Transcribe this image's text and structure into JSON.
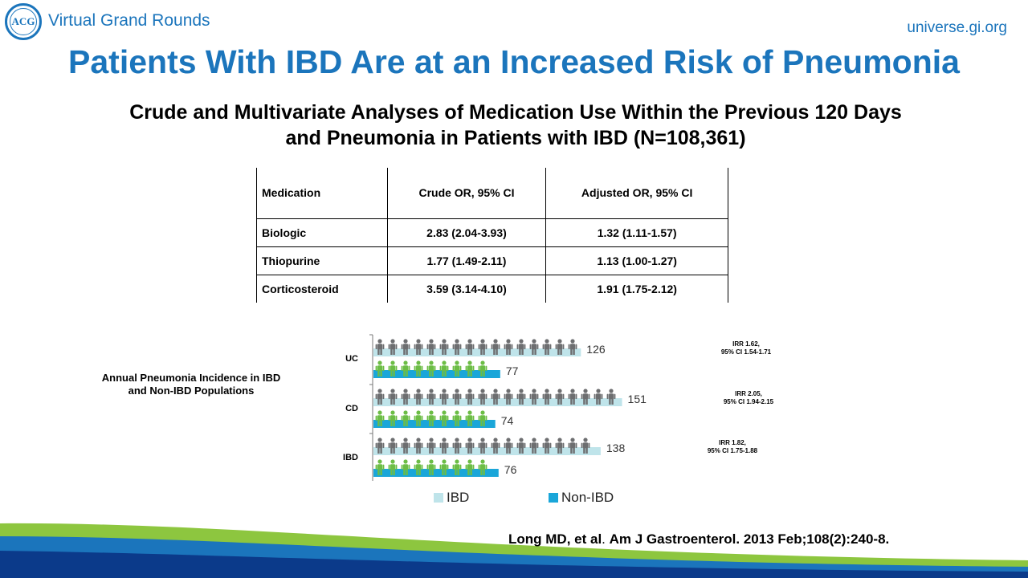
{
  "header": {
    "logo_text": "ACG",
    "program": "Virtual Grand Rounds",
    "site": "universe.gi.org"
  },
  "title": "Patients With IBD Are at an Increased Risk of Pneumonia",
  "subtitle": {
    "line1": "Crude and Multivariate Analyses of Medication Use Within the Previous 120 Days",
    "line2": "and Pneumonia in Patients with IBD (N=108,361)"
  },
  "table": {
    "headers": [
      "Medication",
      "Crude OR, 95% CI",
      "Adjusted OR, 95% CI"
    ],
    "rows": [
      [
        "Biologic",
        "2.83 (2.04-3.93)",
        "1.32 (1.11-1.57)"
      ],
      [
        "Thiopurine",
        "1.77 (1.49-2.11)",
        "1.13 (1.00-1.27)"
      ],
      [
        "Corticosteroid",
        "3.59 (3.14-4.10)",
        "1.91 (1.75-2.12)"
      ]
    ]
  },
  "chart_label": {
    "line1": "Annual Pneumonia Incidence in IBD",
    "line2": "and Non-IBD Populations"
  },
  "chart_data": {
    "type": "bar",
    "orientation": "horizontal",
    "categories": [
      "UC",
      "CD",
      "IBD"
    ],
    "series": [
      {
        "name": "IBD",
        "values": [
          126,
          151,
          138
        ],
        "color": "#bfe4ea",
        "figure_color": "#6d6e70"
      },
      {
        "name": "Non-IBD",
        "values": [
          77,
          74,
          76
        ],
        "color": "#1aa6d9",
        "figure_color": "#6cbd45"
      }
    ],
    "annotations": [
      {
        "category": "UC",
        "line1": "IRR 1.62,",
        "line2": "95% CI 1.54-1.71"
      },
      {
        "category": "CD",
        "line1": "IRR 2.05,",
        "line2": "95% CI 1.94-2.15"
      },
      {
        "category": "IBD",
        "line1": "IRR 1.82,",
        "line2": "95% CI 1.75-1.88"
      }
    ],
    "legend_position": "bottom"
  },
  "citation": {
    "authors": "Long MD, et al",
    "sep": ". ",
    "source": "Am J Gastroenterol. 2013 Feb;108(2):240-8."
  },
  "colors": {
    "brand_blue": "#1b75bc",
    "wave_green": "#8dc63f",
    "wave_blue": "#1b75bc",
    "wave_navy": "#0b3a8a"
  }
}
